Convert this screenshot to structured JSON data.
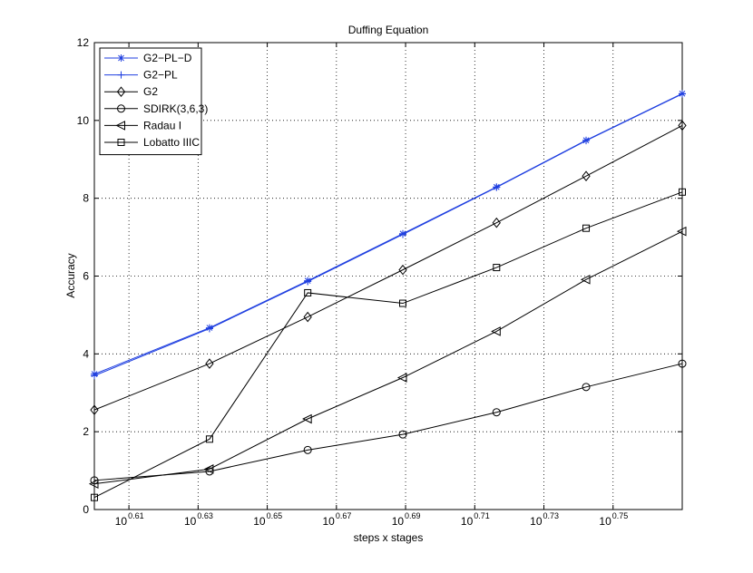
{
  "chart_data": {
    "type": "line",
    "title": "Duffing Equation",
    "xlabel": "steps x stages",
    "ylabel": "Accuracy",
    "x_scale": "log10",
    "xlim_exp": [
      0.6,
      0.77
    ],
    "ylim": [
      0,
      12
    ],
    "yticks": [
      0,
      2,
      4,
      6,
      8,
      10,
      12
    ],
    "xtick_base": "10",
    "xtick_exponents": [
      "0.61",
      "0.63",
      "0.65",
      "0.67",
      "0.69",
      "0.71",
      "0.73",
      "0.75"
    ],
    "grid": true,
    "legend_position": "top-left",
    "x_exp": [
      0.6,
      0.6333,
      0.6617,
      0.6892,
      0.7163,
      0.7422,
      0.77
    ],
    "series": [
      {
        "name": "G2−PL−D",
        "color": "#1f3fe0",
        "marker": "star",
        "values": [
          3.48,
          4.67,
          5.88,
          7.09,
          8.29,
          9.49,
          10.69
        ]
      },
      {
        "name": "G2−PL",
        "color": "#1f3fe0",
        "marker": "plus",
        "values": [
          3.44,
          4.65,
          5.86,
          7.07,
          8.28,
          9.48,
          10.68
        ]
      },
      {
        "name": "G2",
        "color": "#000000",
        "marker": "diamond",
        "values": [
          2.56,
          3.75,
          4.95,
          6.16,
          7.37,
          8.57,
          9.87
        ]
      },
      {
        "name": "SDIRK(3,6,3)",
        "color": "#000000",
        "marker": "circle",
        "values": [
          0.75,
          0.98,
          1.53,
          1.93,
          2.5,
          3.15,
          3.75
        ]
      },
      {
        "name": "Radau I",
        "color": "#000000",
        "marker": "triangle-left",
        "values": [
          0.66,
          1.04,
          2.33,
          3.39,
          4.58,
          5.91,
          7.15
        ]
      },
      {
        "name": "Lobatto IIIC",
        "color": "#000000",
        "marker": "square",
        "values": [
          0.31,
          1.81,
          5.57,
          5.3,
          6.22,
          7.23,
          8.16
        ]
      }
    ]
  }
}
